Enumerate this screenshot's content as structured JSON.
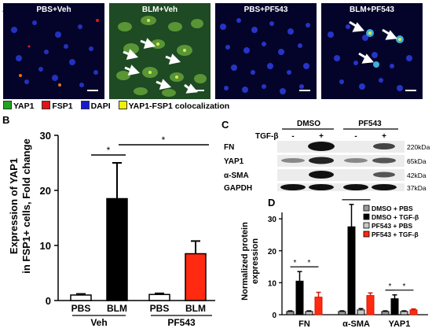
{
  "panelA": {
    "letter": "A",
    "images": [
      "PBS+Veh",
      "BLM+Veh",
      "PBS+PF543",
      "BLM+PF543"
    ],
    "legend": [
      {
        "label": "YAP1",
        "color": "#1fa51f"
      },
      {
        "label": "FSP1",
        "color": "#e01515"
      },
      {
        "label": "DAPI",
        "color": "#1818d0"
      },
      {
        "label": "YAP1-FSP1 colocalization",
        "color": "#f0f000"
      }
    ]
  },
  "panelB": {
    "letter": "B",
    "ylabel_line1": "Expression of YAP1",
    "ylabel_line2": "in FSP1+ cells, Fold change",
    "yticks": [
      "0",
      "10",
      "20",
      "30"
    ],
    "sig": [
      "*",
      "*"
    ],
    "groups": [
      "Veh",
      "PF543"
    ],
    "chart_data": {
      "type": "bar",
      "categories": [
        "PBS",
        "BLM",
        "PBS",
        "BLM"
      ],
      "groups": [
        "Veh",
        "Veh",
        "PF543",
        "PF543"
      ],
      "values": [
        1.0,
        18.5,
        1.1,
        8.5
      ],
      "errors": [
        0.2,
        6.5,
        0.2,
        2.3
      ],
      "colors": [
        "#ffffff",
        "#000000",
        "#ffffff",
        "#ff2a10"
      ],
      "ylim": [
        0,
        30
      ],
      "ylabel": "Expression of YAP1 in FSP1+ cells, Fold change"
    }
  },
  "panelC": {
    "letter": "C",
    "treatments": [
      "DMSO",
      "PF543"
    ],
    "tgf_label": "TGF-β",
    "signs": [
      "-",
      "+",
      "-",
      "+"
    ],
    "proteins": [
      "FN",
      "YAP1",
      "α-SMA",
      "GAPDH"
    ],
    "sizes": [
      "220kDa",
      "65kDa",
      "42kDa",
      "37kDa"
    ]
  },
  "panelD": {
    "letter": "D",
    "ylabel_line1": "Normalized protein",
    "ylabel_line2": "expression",
    "yticks": [
      "0",
      "10",
      "20",
      "30"
    ],
    "legend": [
      {
        "label": "DMSO + PBS",
        "color": "#9a9a9a"
      },
      {
        "label": "DMSO + TGF-β",
        "color": "#000000"
      },
      {
        "label": "PF543 + PBS",
        "color": "#c8c8c8"
      },
      {
        "label": "PF543 + TGF-β",
        "color": "#ff2a10"
      }
    ],
    "chart_data": {
      "type": "bar",
      "categories": [
        "FN",
        "α-SMA",
        "YAP1"
      ],
      "series": [
        {
          "name": "DMSO + PBS",
          "values": [
            1.0,
            1.0,
            1.0
          ],
          "errors": [
            0.2,
            0.2,
            0.2
          ]
        },
        {
          "name": "DMSO + TGF-β",
          "values": [
            10.5,
            27.5,
            5.0
          ],
          "errors": [
            3.0,
            7.0,
            1.2
          ]
        },
        {
          "name": "PF543 + PBS",
          "values": [
            1.0,
            1.5,
            1.0
          ],
          "errors": [
            0.2,
            0.4,
            0.2
          ]
        },
        {
          "name": "PF543 + TGF-β",
          "values": [
            5.5,
            6.0,
            1.5
          ],
          "errors": [
            1.5,
            0.8,
            0.3
          ]
        }
      ],
      "ylim": [
        0,
        32
      ],
      "sig": "*"
    }
  }
}
